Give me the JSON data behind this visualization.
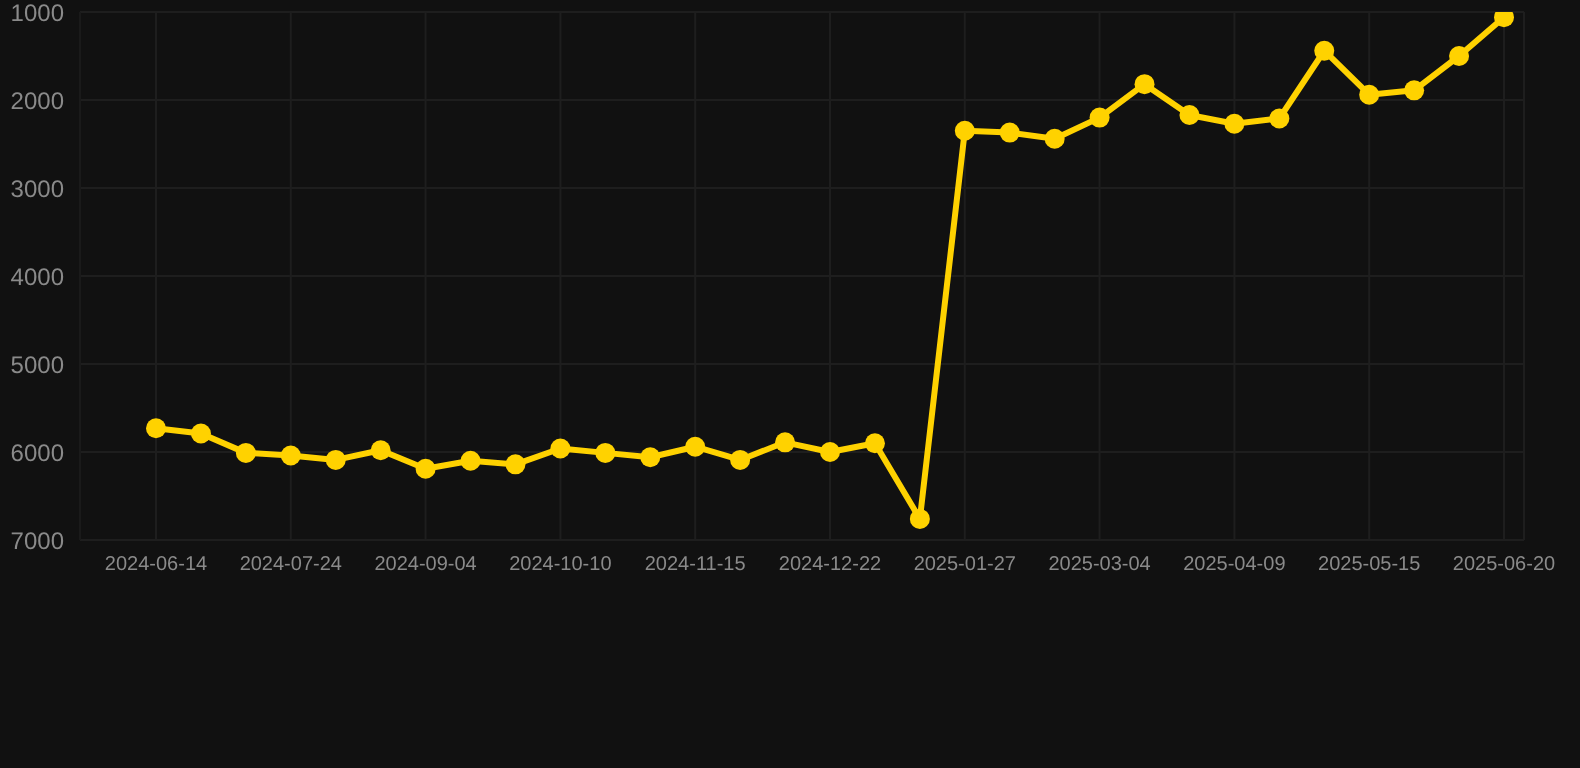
{
  "chart_data": {
    "type": "line",
    "categories": [
      "2024-06-14",
      null,
      null,
      "2024-07-24",
      null,
      null,
      "2024-09-04",
      null,
      null,
      "2024-10-10",
      null,
      null,
      "2024-11-15",
      null,
      null,
      "2024-12-22",
      null,
      null,
      "2025-01-27",
      null,
      null,
      "2025-03-04",
      null,
      null,
      "2025-04-09",
      null,
      null,
      "2025-05-15",
      null,
      null,
      "2025-06-20"
    ],
    "series": [
      {
        "color": "#ffd200",
        "values": [
          5730,
          5790,
          6010,
          6040,
          6090,
          5980,
          6190,
          6100,
          6140,
          5960,
          6010,
          6060,
          5940,
          6090,
          5890,
          6000,
          5900,
          6760,
          2350,
          2370,
          2440,
          2200,
          1820,
          2170,
          2270,
          2210,
          1440,
          1940,
          1890,
          1500,
          1060
        ]
      }
    ],
    "ylim": [
      7000,
      1000
    ],
    "yticks": [
      1000,
      2000,
      3000,
      4000,
      5000,
      6000,
      7000
    ],
    "grid": true,
    "marker": "circle",
    "line_style": "solid"
  }
}
